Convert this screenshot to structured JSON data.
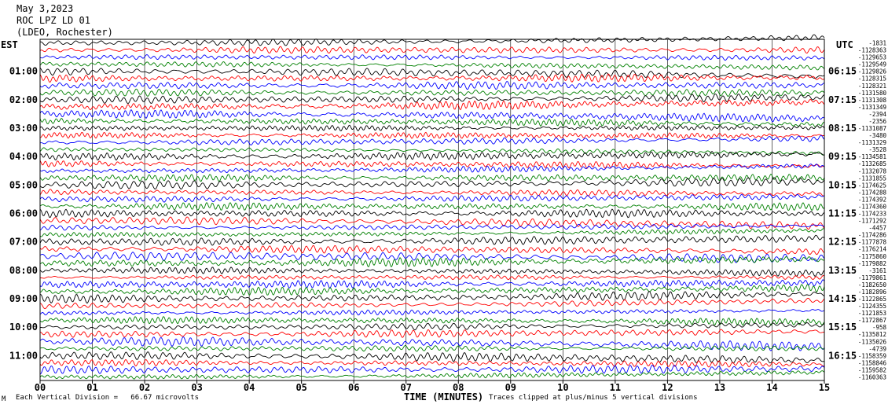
{
  "header": {
    "date": "May 3,2023",
    "station": "ROC LPZ LD 01",
    "location": "(LDEO, Rochester)"
  },
  "left_axis_title": "EST",
  "right_axis_title": "UTC",
  "footer": {
    "scale_note": "Each Vertical Division =   66.67 microvolts",
    "clip_note": "Traces clipped at plus/minus 5 vertical divisions",
    "corner_mark": "M"
  },
  "colors": {
    "trace_cycle": [
      "#000000",
      "#ff0000",
      "#0000ff",
      "#008000"
    ],
    "grid": "#000000",
    "background": "#ffffff"
  },
  "chart_data": {
    "type": "line",
    "subtype": "helicorder-seismogram",
    "xlabel": "TIME (MINUTES)",
    "x_ticks": [
      "00",
      "01",
      "02",
      "03",
      "04",
      "05",
      "06",
      "07",
      "08",
      "09",
      "10",
      "11",
      "12",
      "13",
      "14",
      "15"
    ],
    "xlim": [
      0,
      15
    ],
    "trace_count": 48,
    "minutes_per_trace": 15,
    "left_time_labels": [
      "01:00",
      "02:00",
      "03:00",
      "04:00",
      "05:00",
      "06:00",
      "07:00",
      "08:00",
      "09:00",
      "10:00",
      "11:00"
    ],
    "right_time_labels": [
      "06:15",
      "07:15",
      "08:15",
      "09:15",
      "10:15",
      "11:15",
      "12:15",
      "13:15",
      "14:15",
      "15:15",
      "16:15"
    ],
    "trace_offsets": [
      "-1831",
      "-1128363",
      "-1129653",
      "-1129549",
      "-1129826",
      "-1128315",
      "-1128321",
      "-1131580",
      "-1131308",
      "-1131349",
      "-2394",
      "-2356",
      "-1131087",
      "-3480",
      "-1131329",
      "-3528",
      "-1134581",
      "-1132685",
      "-1132078",
      "-1131855",
      "-1174625",
      "-1174288",
      "-1174392",
      "-1174360",
      "-1174233",
      "-1171292",
      "-4457",
      "-1174286",
      "-1177878",
      "-1176214",
      "-1175860",
      "-1179882",
      "-3161",
      "-1179861",
      "-1182650",
      "-1182896",
      "-1122865",
      "-1124355",
      "-1121853",
      "-1172867",
      "-958",
      "-1135812",
      "-1135026",
      "-4739",
      "-1158359",
      "-1158846",
      "-1159582",
      "-1160363"
    ],
    "scale_microvolts_per_division": 66.67,
    "clip_divisions": 5,
    "grid": true
  }
}
